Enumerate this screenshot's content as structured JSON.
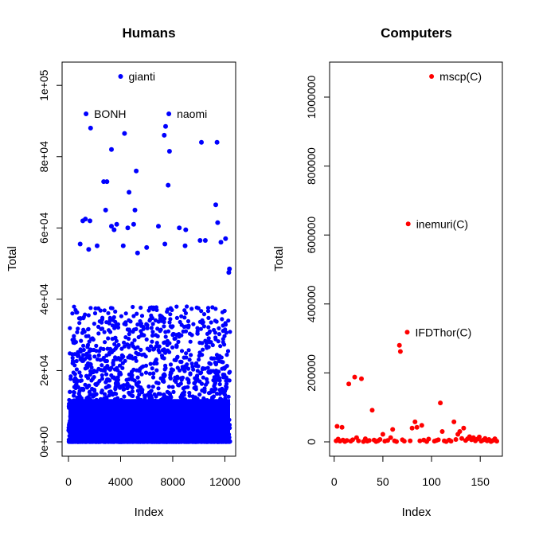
{
  "chart_data": [
    {
      "type": "scatter",
      "title": "Humans",
      "xlabel": "Index",
      "ylabel": "Total",
      "xlim": [
        0,
        12400
      ],
      "ylim": [
        0,
        102500
      ],
      "xticks": [
        0,
        4000,
        8000,
        12000
      ],
      "xtick_labels": [
        "0",
        "4000",
        "8000",
        "12000"
      ],
      "yticks": [
        0,
        20000,
        40000,
        60000,
        80000,
        100000
      ],
      "ytick_labels": [
        "0e+00",
        "2e+04",
        "4e+04",
        "6e+04",
        "8e+04",
        "1e+05"
      ],
      "color": "#0000ff",
      "n_points": 12400,
      "dense_band_max": 12000,
      "annotations": [
        {
          "label": "gianti",
          "x": 4000,
          "y": 102500
        },
        {
          "label": "BONH",
          "x": 1350,
          "y": 92000
        },
        {
          "label": "naomi",
          "x": 7700,
          "y": 92000
        }
      ],
      "points": [
        {
          "x": 1700,
          "y": 88000
        },
        {
          "x": 4300,
          "y": 86500
        },
        {
          "x": 7350,
          "y": 86000
        },
        {
          "x": 7450,
          "y": 88500
        },
        {
          "x": 7750,
          "y": 81500
        },
        {
          "x": 3300,
          "y": 82000
        },
        {
          "x": 10200,
          "y": 84000
        },
        {
          "x": 11400,
          "y": 84000
        },
        {
          "x": 5200,
          "y": 76000
        },
        {
          "x": 2700,
          "y": 73000
        },
        {
          "x": 2950,
          "y": 73000
        },
        {
          "x": 7650,
          "y": 72000
        },
        {
          "x": 4650,
          "y": 70000
        },
        {
          "x": 5100,
          "y": 65000
        },
        {
          "x": 11300,
          "y": 66500
        },
        {
          "x": 2850,
          "y": 65000
        },
        {
          "x": 1100,
          "y": 62000
        },
        {
          "x": 1300,
          "y": 62500
        },
        {
          "x": 1650,
          "y": 62000
        },
        {
          "x": 3700,
          "y": 61000
        },
        {
          "x": 3300,
          "y": 60500
        },
        {
          "x": 6900,
          "y": 60500
        },
        {
          "x": 8500,
          "y": 60000
        },
        {
          "x": 9000,
          "y": 59500
        },
        {
          "x": 11450,
          "y": 61500
        },
        {
          "x": 4550,
          "y": 60000
        },
        {
          "x": 5000,
          "y": 61000
        },
        {
          "x": 3500,
          "y": 59500
        },
        {
          "x": 10500,
          "y": 56500
        },
        {
          "x": 12050,
          "y": 57000
        },
        {
          "x": 900,
          "y": 55500
        },
        {
          "x": 2200,
          "y": 55000
        },
        {
          "x": 1550,
          "y": 54000
        },
        {
          "x": 4200,
          "y": 55000
        },
        {
          "x": 6000,
          "y": 54500
        },
        {
          "x": 7400,
          "y": 55500
        },
        {
          "x": 8950,
          "y": 55000
        },
        {
          "x": 10100,
          "y": 56500
        },
        {
          "x": 11700,
          "y": 56000
        },
        {
          "x": 12300,
          "y": 47500
        },
        {
          "x": 12350,
          "y": 48500
        },
        {
          "x": 5300,
          "y": 53000
        }
      ]
    },
    {
      "type": "scatter",
      "title": "Computers",
      "xlabel": "Index",
      "ylabel": "Total",
      "xlim": [
        1,
        167
      ],
      "ylim": [
        0,
        1060000
      ],
      "xticks": [
        0,
        50,
        100,
        150
      ],
      "xtick_labels": [
        "0",
        "50",
        "100",
        "150"
      ],
      "yticks": [
        0,
        200000,
        400000,
        600000,
        800000,
        1000000
      ],
      "ytick_labels": [
        "0",
        "200000",
        "400000",
        "600000",
        "800000",
        "1000000"
      ],
      "color": "#ff0000",
      "annotations": [
        {
          "label": "mscp(C)",
          "x": 100,
          "y": 1060000
        },
        {
          "label": "inemuri(C)",
          "x": 76,
          "y": 632000
        },
        {
          "label": "IFDThor(C)",
          "x": 75,
          "y": 318000
        }
      ],
      "points": [
        {
          "x": 2,
          "y": 3000
        },
        {
          "x": 3,
          "y": 45000
        },
        {
          "x": 4,
          "y": 8000
        },
        {
          "x": 6,
          "y": 2000
        },
        {
          "x": 8,
          "y": 42000
        },
        {
          "x": 9,
          "y": 5000
        },
        {
          "x": 11,
          "y": 1000
        },
        {
          "x": 13,
          "y": 4000
        },
        {
          "x": 15,
          "y": 168000
        },
        {
          "x": 17,
          "y": 2000
        },
        {
          "x": 19,
          "y": 6000
        },
        {
          "x": 21,
          "y": 188000
        },
        {
          "x": 23,
          "y": 12000
        },
        {
          "x": 25,
          "y": 3000
        },
        {
          "x": 28,
          "y": 183000
        },
        {
          "x": 30,
          "y": 1000
        },
        {
          "x": 32,
          "y": 9000
        },
        {
          "x": 34,
          "y": 2000
        },
        {
          "x": 36,
          "y": 4000
        },
        {
          "x": 39,
          "y": 92000
        },
        {
          "x": 41,
          "y": 5000
        },
        {
          "x": 43,
          "y": 1000
        },
        {
          "x": 45,
          "y": 3000
        },
        {
          "x": 47,
          "y": 7000
        },
        {
          "x": 50,
          "y": 22000
        },
        {
          "x": 52,
          "y": 2000
        },
        {
          "x": 55,
          "y": 4000
        },
        {
          "x": 58,
          "y": 12000
        },
        {
          "x": 60,
          "y": 36000
        },
        {
          "x": 62,
          "y": 3000
        },
        {
          "x": 64,
          "y": 1000
        },
        {
          "x": 67,
          "y": 280000
        },
        {
          "x": 68,
          "y": 262000
        },
        {
          "x": 70,
          "y": 6000
        },
        {
          "x": 72,
          "y": 2000
        },
        {
          "x": 78,
          "y": 3000
        },
        {
          "x": 80,
          "y": 40000
        },
        {
          "x": 83,
          "y": 58000
        },
        {
          "x": 85,
          "y": 42000
        },
        {
          "x": 88,
          "y": 3000
        },
        {
          "x": 90,
          "y": 48000
        },
        {
          "x": 92,
          "y": 5000
        },
        {
          "x": 95,
          "y": 1000
        },
        {
          "x": 97,
          "y": 8000
        },
        {
          "x": 103,
          "y": 2000
        },
        {
          "x": 105,
          "y": 4000
        },
        {
          "x": 107,
          "y": 6000
        },
        {
          "x": 109,
          "y": 113000
        },
        {
          "x": 111,
          "y": 30000
        },
        {
          "x": 113,
          "y": 3000
        },
        {
          "x": 115,
          "y": 1000
        },
        {
          "x": 118,
          "y": 5000
        },
        {
          "x": 120,
          "y": 2000
        },
        {
          "x": 123,
          "y": 58000
        },
        {
          "x": 125,
          "y": 7000
        },
        {
          "x": 127,
          "y": 22000
        },
        {
          "x": 129,
          "y": 30000
        },
        {
          "x": 131,
          "y": 10000
        },
        {
          "x": 133,
          "y": 40000
        },
        {
          "x": 135,
          "y": 4000
        },
        {
          "x": 137,
          "y": 9000
        },
        {
          "x": 139,
          "y": 15000
        },
        {
          "x": 141,
          "y": 6000
        },
        {
          "x": 143,
          "y": 12000
        },
        {
          "x": 145,
          "y": 3000
        },
        {
          "x": 147,
          "y": 8000
        },
        {
          "x": 149,
          "y": 14000
        },
        {
          "x": 151,
          "y": 2000
        },
        {
          "x": 153,
          "y": 5000
        },
        {
          "x": 155,
          "y": 10000
        },
        {
          "x": 157,
          "y": 3000
        },
        {
          "x": 159,
          "y": 7000
        },
        {
          "x": 161,
          "y": 1000
        },
        {
          "x": 163,
          "y": 4000
        },
        {
          "x": 165,
          "y": 9000
        },
        {
          "x": 167,
          "y": 2000
        }
      ]
    }
  ]
}
